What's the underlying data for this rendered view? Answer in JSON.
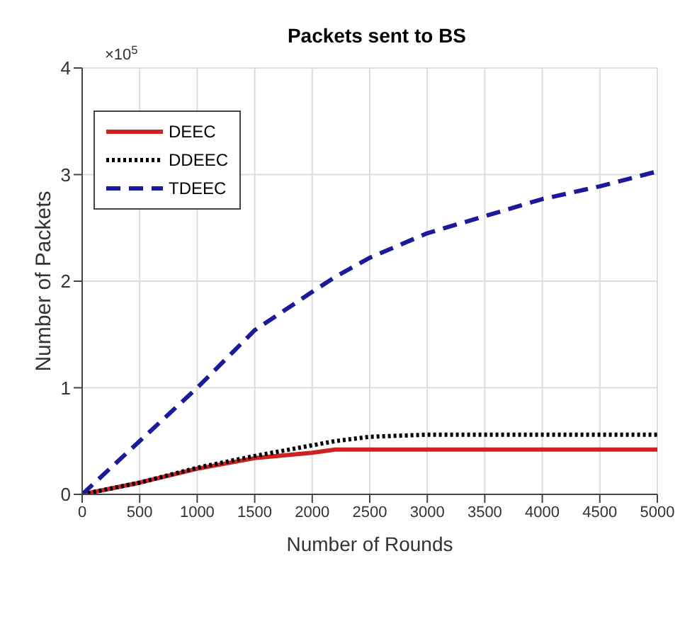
{
  "chart_data": {
    "type": "line",
    "title": "Packets sent to BS",
    "xlabel": "Number of Rounds",
    "ylabel": "Number of Packets",
    "annotations": [
      "×10$^{5}$"
    ],
    "x": [
      0,
      500,
      1000,
      1500,
      2000,
      2200,
      2500,
      3000,
      3500,
      4000,
      4500,
      5000
    ],
    "series": [
      {
        "name": "DEEC",
        "color": "#cc2222",
        "line_style": "solid",
        "values": [
          0,
          0.11,
          0.24,
          0.34,
          0.39,
          0.42,
          0.42,
          0.42,
          0.42,
          0.42,
          0.42,
          0.42
        ]
      },
      {
        "name": "DDEEC",
        "color": "#000000",
        "line_style": "dotted",
        "values": [
          0,
          0.11,
          0.25,
          0.36,
          0.46,
          0.5,
          0.54,
          0.56,
          0.56,
          0.56,
          0.56,
          0.56
        ]
      },
      {
        "name": "TDEEC",
        "color": "#1a1a9a",
        "line_style": "dashed",
        "values": [
          0,
          0.5,
          1.0,
          1.54,
          1.9,
          2.04,
          2.22,
          2.45,
          2.61,
          2.77,
          2.89,
          3.03
        ]
      }
    ],
    "xlim": [
      0,
      5000
    ],
    "xticks": [
      0,
      500,
      1000,
      1500,
      2000,
      2500,
      3000,
      3500,
      4000,
      4500,
      5000
    ],
    "ylim": [
      0,
      4
    ],
    "yticks": [
      0,
      1,
      2,
      3,
      4
    ],
    "grid": true,
    "legend": "top left",
    "marker": "none"
  }
}
